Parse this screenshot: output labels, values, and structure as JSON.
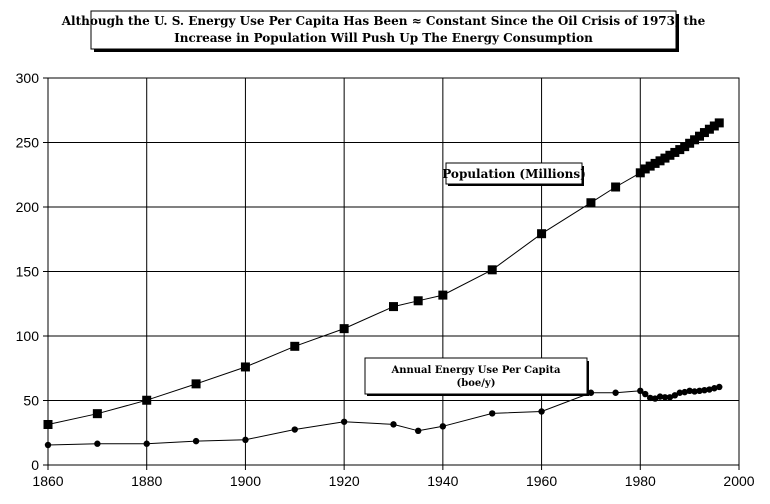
{
  "chart_data": {
    "type": "line",
    "title": "Although the U. S. Energy Use Per Capita Has Been ≈ Constant Since the Oil Crisis of 1973, the Increase in Population Will Push Up The Energy Consumption",
    "title_lines": [
      "Although the U. S. Energy Use Per Capita Has Been ≈ Constant Since the Oil Crisis of 1973, the",
      "Increase in Population Will Push Up The Energy Consumption"
    ],
    "xlabel": "",
    "ylabel": "",
    "xlim": [
      1860,
      2000
    ],
    "ylim": [
      0,
      300
    ],
    "x_ticks": [
      "1860",
      "1880",
      "1900",
      "1920",
      "1940",
      "1960",
      "1980",
      "2000"
    ],
    "y_ticks": [
      "0",
      "50",
      "100",
      "150",
      "200",
      "250",
      "300"
    ],
    "grid": true,
    "series": [
      {
        "name": "Population (Millions)",
        "label_lines": [
          "Population (Millions)"
        ],
        "marker": "square",
        "color": "#000000",
        "points": [
          [
            1860,
            31.4
          ],
          [
            1870,
            39.8
          ],
          [
            1880,
            50.2
          ],
          [
            1890,
            62.9
          ],
          [
            1900,
            76.0
          ],
          [
            1910,
            92.0
          ],
          [
            1920,
            105.7
          ],
          [
            1930,
            122.8
          ],
          [
            1935,
            127.3
          ],
          [
            1940,
            131.7
          ],
          [
            1950,
            151.3
          ],
          [
            1960,
            179.3
          ],
          [
            1970,
            203.3
          ],
          [
            1975,
            215.5
          ],
          [
            1980,
            226.5
          ],
          [
            1981,
            229.5
          ],
          [
            1982,
            231.7
          ],
          [
            1983,
            233.8
          ],
          [
            1984,
            235.8
          ],
          [
            1985,
            237.9
          ],
          [
            1986,
            240.1
          ],
          [
            1987,
            242.3
          ],
          [
            1988,
            244.5
          ],
          [
            1989,
            246.8
          ],
          [
            1990,
            249.4
          ],
          [
            1991,
            252.1
          ],
          [
            1992,
            254.9
          ],
          [
            1993,
            257.7
          ],
          [
            1994,
            260.3
          ],
          [
            1995,
            262.8
          ],
          [
            1996,
            265.2
          ]
        ]
      },
      {
        "name": "Annual Energy Use Per Capita (boe/y)",
        "label_lines": [
          "Annual Energy Use Per Capita",
          "(boe/y)"
        ],
        "marker": "circle",
        "color": "#000000",
        "points": [
          [
            1860,
            15.5
          ],
          [
            1870,
            16.5
          ],
          [
            1880,
            16.5
          ],
          [
            1890,
            18.5
          ],
          [
            1900,
            19.5
          ],
          [
            1910,
            27.5
          ],
          [
            1920,
            33.5
          ],
          [
            1930,
            31.5
          ],
          [
            1935,
            26.5
          ],
          [
            1940,
            30.0
          ],
          [
            1950,
            40.0
          ],
          [
            1960,
            41.5
          ],
          [
            1970,
            56.0
          ],
          [
            1975,
            56.0
          ],
          [
            1980,
            57.5
          ],
          [
            1981,
            55.0
          ],
          [
            1982,
            52.0
          ],
          [
            1983,
            51.5
          ],
          [
            1984,
            53.0
          ],
          [
            1985,
            52.5
          ],
          [
            1986,
            52.5
          ],
          [
            1987,
            54.0
          ],
          [
            1988,
            56.0
          ],
          [
            1989,
            56.5
          ],
          [
            1990,
            57.5
          ],
          [
            1991,
            57.0
          ],
          [
            1992,
            57.5
          ],
          [
            1993,
            58.0
          ],
          [
            1994,
            58.5
          ],
          [
            1995,
            59.5
          ],
          [
            1996,
            60.5
          ]
        ]
      }
    ]
  }
}
